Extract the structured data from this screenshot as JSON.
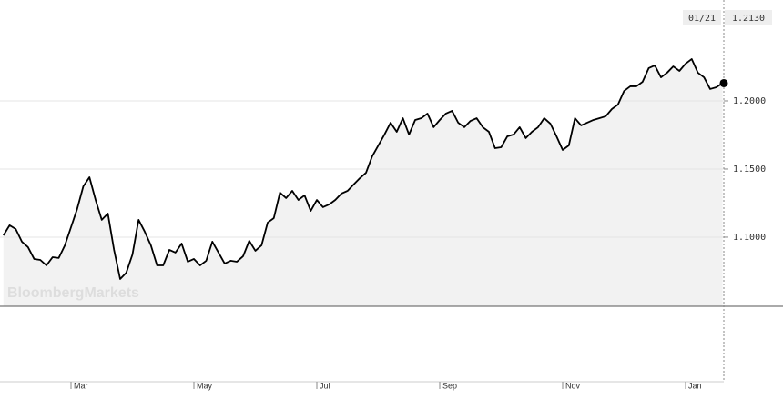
{
  "chart_data": {
    "type": "line",
    "watermark": "BloombergMarkets",
    "last_point": {
      "date": "01/21",
      "value": 1.213,
      "label": "1.2130"
    },
    "categories": [
      null,
      null,
      null,
      null,
      null,
      null,
      null,
      null,
      null,
      null,
      null,
      "Mar",
      null,
      null,
      null,
      null,
      null,
      null,
      null,
      null,
      null,
      null,
      null,
      null,
      null,
      null,
      null,
      null,
      null,
      null,
      null,
      "May",
      null,
      null,
      null,
      null,
      null,
      null,
      null,
      null,
      null,
      null,
      null,
      null,
      null,
      null,
      null,
      null,
      null,
      null,
      null,
      "Jul",
      null,
      null,
      null,
      null,
      null,
      null,
      null,
      null,
      null,
      null,
      null,
      null,
      null,
      null,
      null,
      null,
      null,
      null,
      null,
      "Sep",
      null,
      null,
      null,
      null,
      null,
      null,
      null,
      null,
      null,
      null,
      null,
      null,
      null,
      null,
      null,
      null,
      null,
      null,
      null,
      "Nov",
      null,
      null,
      null,
      null,
      null,
      null,
      null,
      null,
      null,
      null,
      null,
      null,
      null,
      null,
      null,
      null,
      null,
      null,
      null,
      "Jan",
      null,
      null,
      null,
      null,
      null,
      null
    ],
    "series": [
      {
        "color": "#000000",
        "values": [
          1.1013,
          1.1087,
          1.106,
          1.0967,
          1.0927,
          1.084,
          1.0833,
          1.0793,
          1.0853,
          1.0847,
          1.094,
          1.1073,
          1.1207,
          1.1373,
          1.144,
          1.1273,
          1.1127,
          1.1173,
          1.0907,
          1.0693,
          1.074,
          1.0873,
          1.1127,
          1.104,
          1.094,
          1.0793,
          1.0793,
          1.0907,
          1.0887,
          1.0953,
          1.082,
          1.084,
          1.0793,
          1.0827,
          1.0967,
          1.0887,
          1.0807,
          1.0827,
          1.082,
          1.086,
          1.0973,
          1.09,
          1.094,
          1.1107,
          1.114,
          1.1327,
          1.1287,
          1.134,
          1.1273,
          1.1307,
          1.1193,
          1.1273,
          1.122,
          1.124,
          1.1273,
          1.132,
          1.134,
          1.1387,
          1.1433,
          1.1473,
          1.1593,
          1.1673,
          1.1753,
          1.184,
          1.1773,
          1.1873,
          1.1753,
          1.186,
          1.1873,
          1.1907,
          1.1807,
          1.186,
          1.1907,
          1.1927,
          1.184,
          1.1807,
          1.1853,
          1.1873,
          1.1807,
          1.1773,
          1.1653,
          1.166,
          1.174,
          1.1753,
          1.1807,
          1.1727,
          1.1773,
          1.1807,
          1.1873,
          1.1833,
          1.174,
          1.164,
          1.1673,
          1.1873,
          1.182,
          1.184,
          1.186,
          1.1873,
          1.1887,
          1.194,
          1.1973,
          1.2073,
          1.2107,
          1.2107,
          1.214,
          1.224,
          1.226,
          1.2173,
          1.2207,
          1.2253,
          1.222,
          1.2273,
          1.2307,
          1.2207,
          1.2173,
          1.2087,
          1.21,
          1.213
        ]
      }
    ],
    "ylim": [
      1.0493,
      1.274
    ],
    "yticks": [
      {
        "value": 1.1,
        "label": "1.1000"
      },
      {
        "value": 1.15,
        "label": "1.1500"
      },
      {
        "value": 1.2,
        "label": "1.2000"
      }
    ],
    "grid": true
  }
}
